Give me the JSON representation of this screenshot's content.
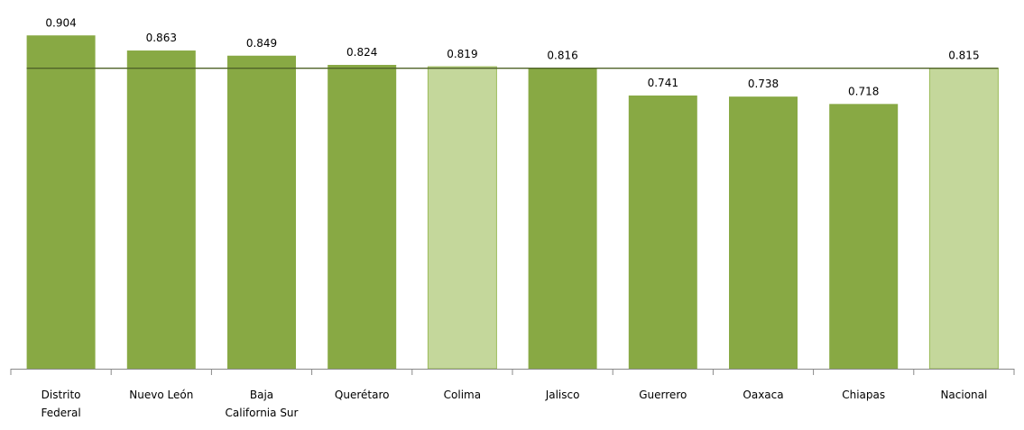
{
  "chart_data": {
    "type": "bar",
    "categories": [
      [
        "Distrito",
        "Federal"
      ],
      [
        "Nuevo León"
      ],
      [
        "Baja",
        "California Sur"
      ],
      [
        "Querétaro"
      ],
      [
        "Colima"
      ],
      [
        "Jalisco"
      ],
      [
        "Guerrero"
      ],
      [
        "Oaxaca"
      ],
      [
        "Chiapas"
      ],
      [
        "Nacional"
      ]
    ],
    "values": [
      0.904,
      0.863,
      0.849,
      0.824,
      0.819,
      0.816,
      0.741,
      0.738,
      0.718,
      0.815
    ],
    "colors": [
      "#88a944",
      "#88a944",
      "#88a944",
      "#88a944",
      "#c4d79b",
      "#88a944",
      "#88a944",
      "#88a944",
      "#88a944",
      "#c4d79b"
    ],
    "ylim": [
      0,
      1
    ],
    "reference_line_color": "#4f6228"
  }
}
